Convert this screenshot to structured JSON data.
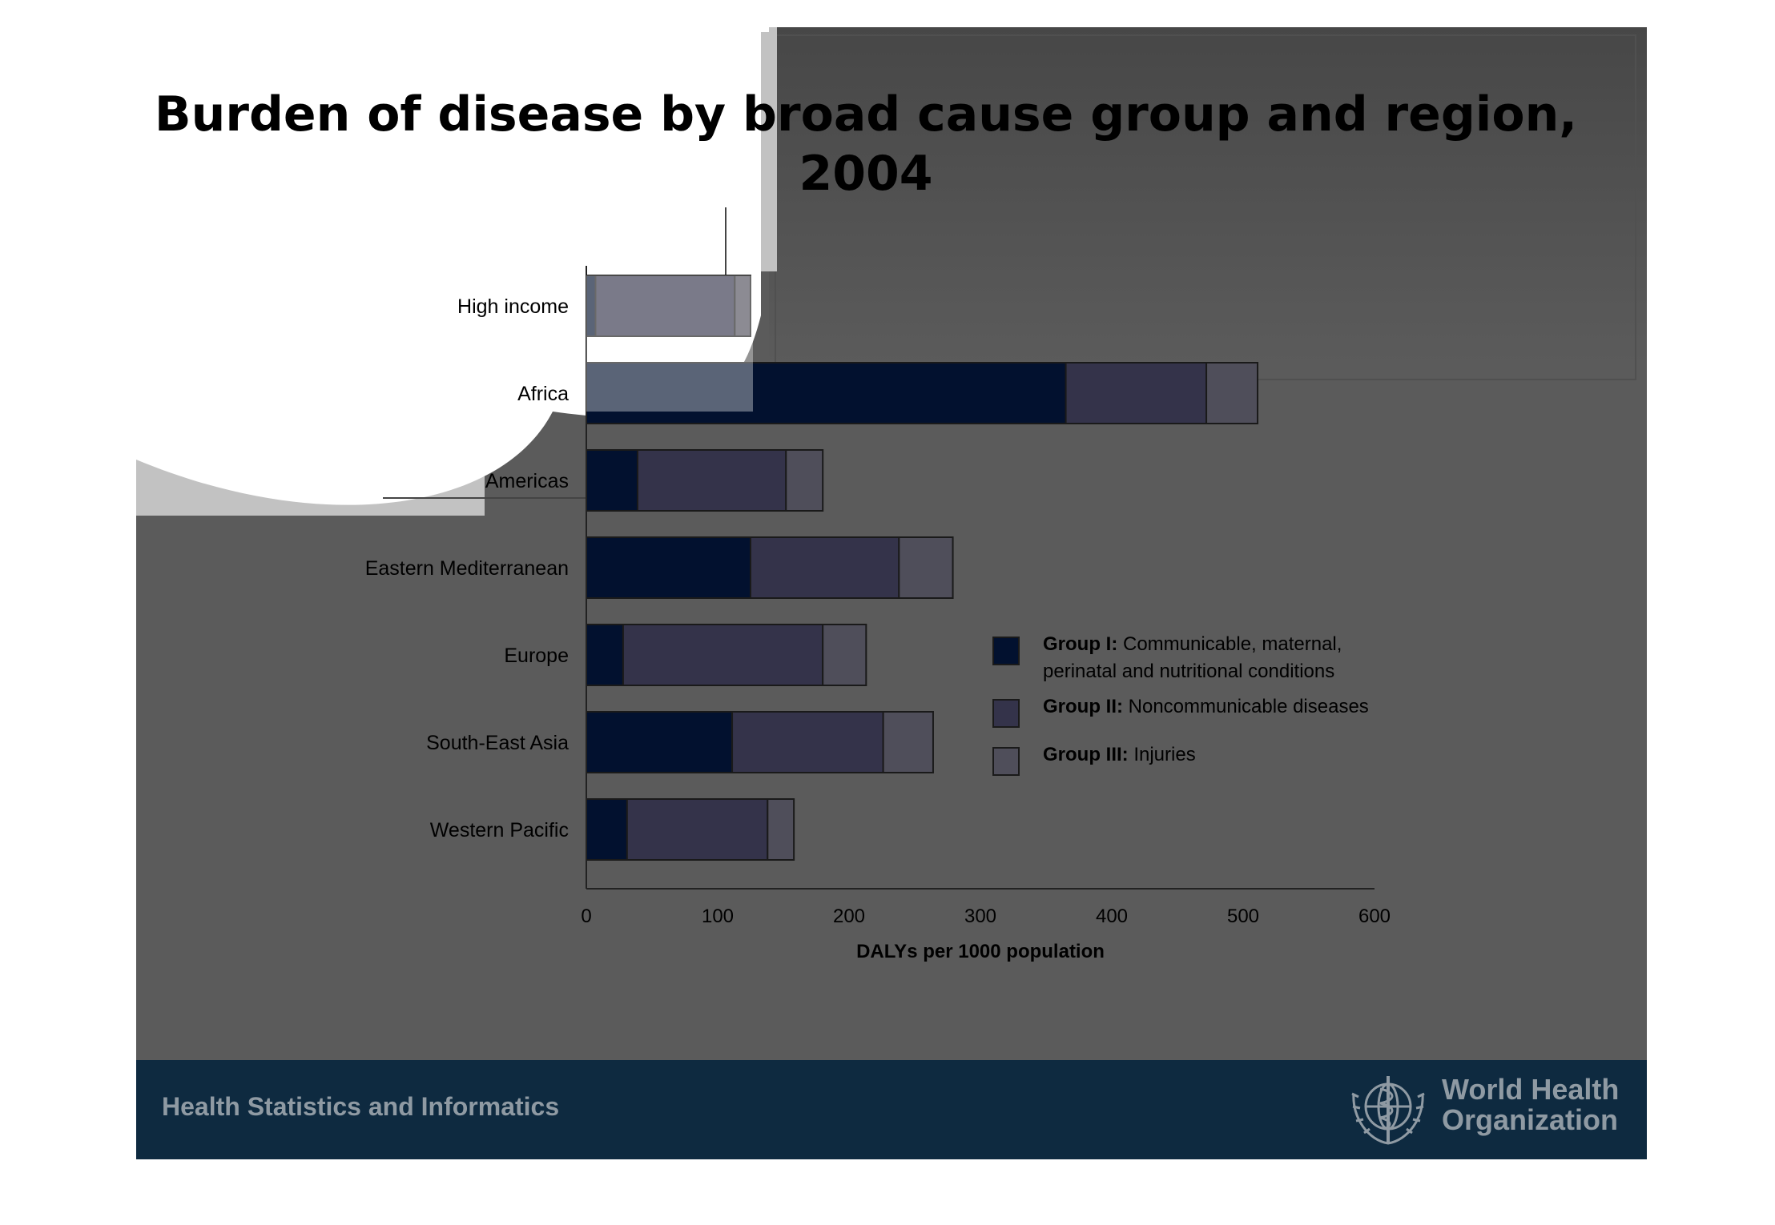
{
  "slide": {
    "title": "Burden of disease by broad cause group and region, 2004",
    "footer_text": "Health Statistics and Informatics",
    "org_name_line1": "World Health",
    "org_name_line2": "Organization",
    "logo_icon": "who-emblem-icon"
  },
  "colors": {
    "slide_bg": "#5b5b5b",
    "footer_bg": "#0e2a40",
    "group1": "#02112f",
    "group2": "#34334a",
    "group3": "#4f4e5a"
  },
  "chart_data": {
    "type": "bar",
    "orientation": "horizontal",
    "stacked": true,
    "categories": [
      "High income",
      "Africa",
      "Americas",
      "Eastern Mediterranean",
      "Europe",
      "South-East Asia",
      "Western Pacific"
    ],
    "series": [
      {
        "name": "Group I: Communicable, maternal, perinatal and nutritional conditions",
        "values": [
          7,
          365,
          39,
          125,
          28,
          111,
          31
        ]
      },
      {
        "name": "Group II: Noncommunicable diseases",
        "values": [
          106,
          107,
          113,
          113,
          152,
          115,
          107
        ]
      },
      {
        "name": "Group III: Injuries",
        "values": [
          12,
          39,
          28,
          41,
          33,
          38,
          20
        ]
      }
    ],
    "legend": [
      {
        "bold": "Group I:",
        "text_line1": "Communicable, maternal,",
        "text_line2": "perinatal and nutritional conditions"
      },
      {
        "bold": "Group II:",
        "text_line1": "Noncommunicable diseases"
      },
      {
        "bold": "Group III:",
        "text_line1": "Injuries"
      }
    ],
    "legend_position": "right",
    "xlabel": "DALYs per 1000 population",
    "xlim": [
      0,
      600
    ],
    "xticks": [
      0,
      100,
      200,
      300,
      400,
      500,
      600
    ],
    "grid": false
  }
}
